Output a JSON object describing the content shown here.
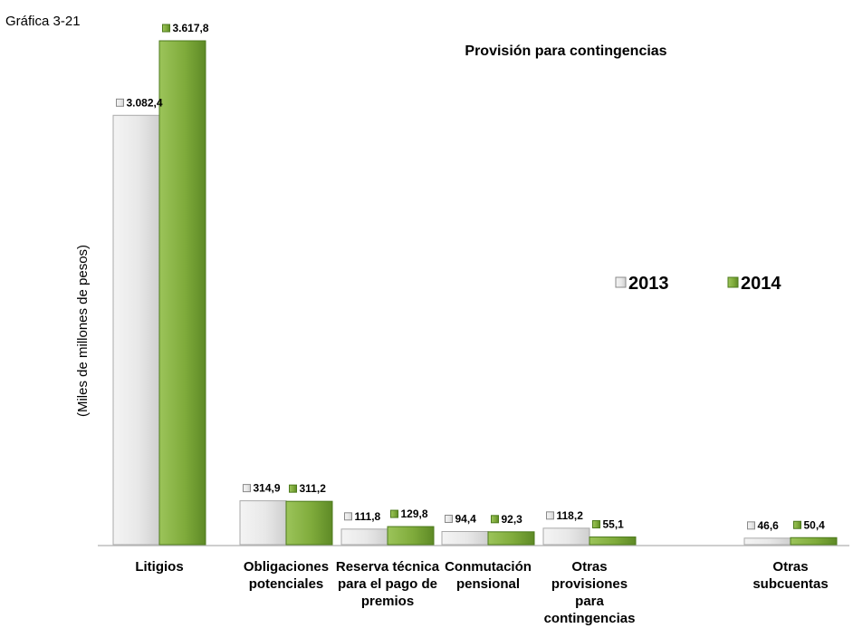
{
  "figure_label": "Gráfica 3-21",
  "chart_data": {
    "type": "bar",
    "title": "Provisión para contingencias",
    "xlabel": "",
    "ylabel": "(Miles de millones de pesos)",
    "ylim": [
      0,
      3617.8
    ],
    "grid": false,
    "legend_position": "right",
    "categories": [
      [
        "Litigios"
      ],
      [
        "Obligaciones",
        "potenciales"
      ],
      [
        "Reserva técnica",
        "para el pago de",
        "premios"
      ],
      [
        "Conmutación",
        "pensional"
      ],
      [
        "Otras",
        "provisiones",
        "para",
        "contingencias"
      ],
      [
        "Otras",
        "subcuentas"
      ]
    ],
    "series": [
      {
        "name": "2013",
        "color": "#e6e6e6",
        "values": [
          3082.4,
          314.9,
          111.8,
          94.4,
          118.2,
          46.6
        ],
        "labels": [
          "3.082,4",
          "314,9",
          "111,8",
          "94,4",
          "118,2",
          "46,6"
        ]
      },
      {
        "name": "2014",
        "color": "#7fab3b",
        "values": [
          3617.8,
          311.2,
          129.8,
          92.3,
          55.1,
          50.4
        ],
        "labels": [
          "3.617,8",
          "311,2",
          "129,8",
          "92,3",
          "55,1",
          "50,4"
        ]
      }
    ]
  }
}
